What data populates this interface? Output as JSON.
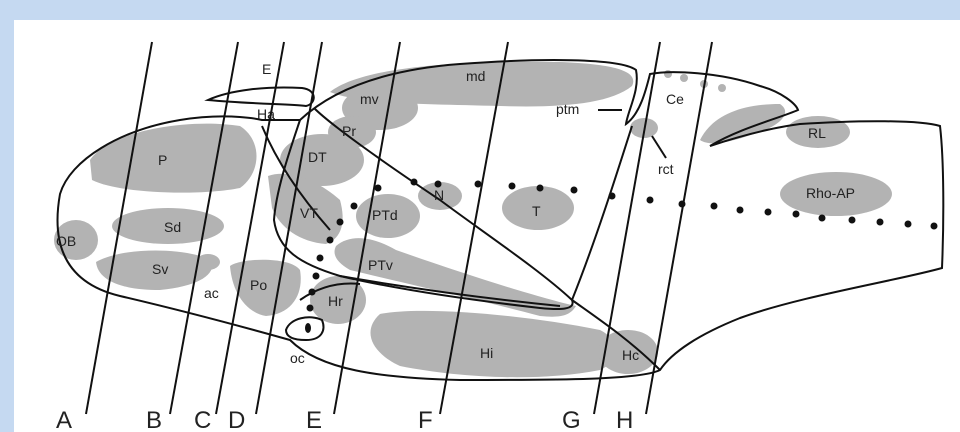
{
  "figure": {
    "regions": {
      "E": "E",
      "Ha": "Ha",
      "md": "md",
      "mv": "mv",
      "Pr": "Pr",
      "DT": "DT",
      "P": "P",
      "Sd": "Sd",
      "Sv": "Sv",
      "OB": "OB",
      "ac": "ac",
      "Po": "Po",
      "VT": "VT",
      "PTd": "PTd",
      "N": "N",
      "T": "T",
      "PTv": "PTv",
      "Hr": "Hr",
      "oc": "oc",
      "Hi": "Hi",
      "Hc": "Hc",
      "ptm": "ptm",
      "rct": "rct",
      "Ce": "Ce",
      "RL": "RL",
      "RhoAP": "Rho-AP"
    },
    "planes": [
      "A",
      "B",
      "C",
      "D",
      "E",
      "F",
      "G",
      "H"
    ],
    "colors": {
      "background": "#c5d9f1",
      "panel": "#ffffff",
      "region_fill": "#b3b3b3",
      "outline": "#111111"
    }
  }
}
